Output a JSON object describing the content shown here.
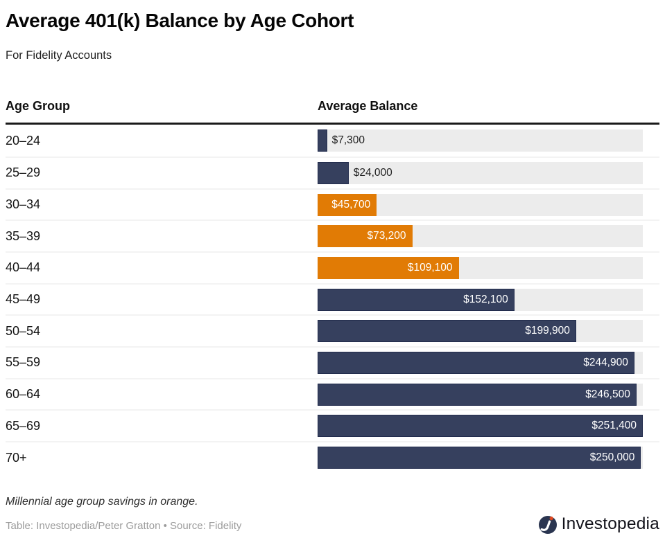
{
  "header": {
    "title": "Average 401(k) Balance by Age Cohort",
    "subtitle": "For Fidelity Accounts"
  },
  "table": {
    "age_group_header": "Age Group",
    "average_balance_header": "Average Balance"
  },
  "chart_data": {
    "type": "bar",
    "orientation": "horizontal",
    "title": "Average 401(k) Balance by Age Cohort",
    "subtitle": "For Fidelity Accounts",
    "xlabel": "Average Balance",
    "ylabel": "Age Group",
    "categories": [
      "20–24",
      "25–29",
      "30–34",
      "35–39",
      "40–44",
      "45–49",
      "50–54",
      "55–59",
      "60–64",
      "65–69",
      "70+"
    ],
    "values": [
      7300,
      24000,
      45700,
      73200,
      109100,
      152100,
      199900,
      244900,
      246500,
      251400,
      250000
    ],
    "value_labels": [
      "$7,300",
      "$24,000",
      "$45,700",
      "$73,200",
      "$109,100",
      "$152,100",
      "$199,900",
      "$244,900",
      "$246,500",
      "$251,400",
      "$250,000"
    ],
    "highlight_indices": [
      2,
      3,
      4
    ],
    "highlight_meaning": "Millennial age groups shown in orange",
    "max_value": 251400,
    "grid": false,
    "legend": false,
    "colors": {
      "bar_default": "#36405e",
      "bar_default_border": "#222c4d",
      "bar_highlight": "#e17b05",
      "track": "#ececec"
    }
  },
  "footer": {
    "note": "Millennial age group savings in orange.",
    "credit": "Table: Investopedia/Peter Gratton • Source: Fidelity",
    "brand": "Investopedia"
  }
}
